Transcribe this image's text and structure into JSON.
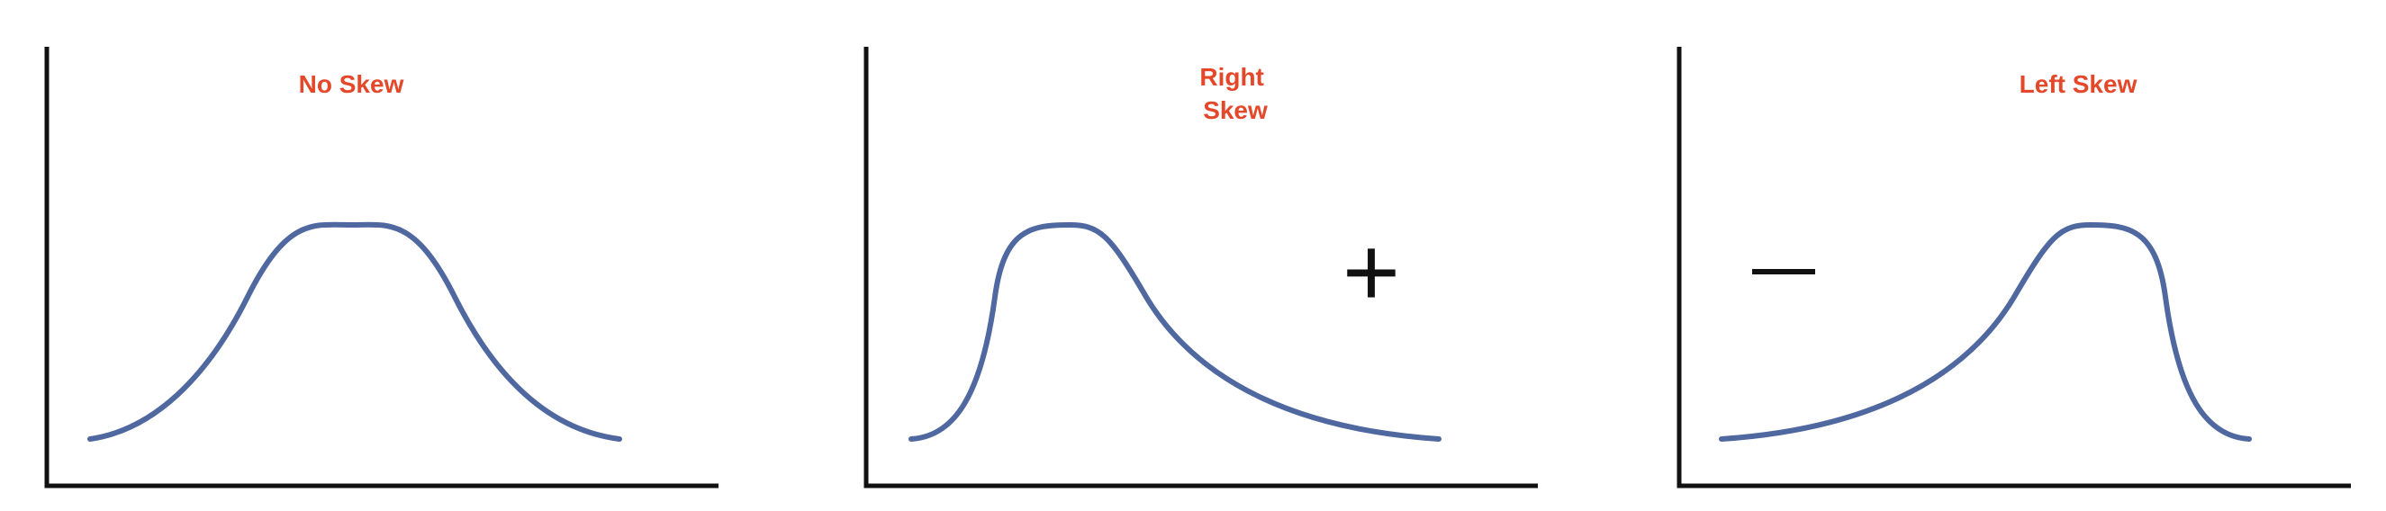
{
  "colors": {
    "curve": "#5068a0",
    "axis": "#111111",
    "title": "#e4482a",
    "sign": "#111111",
    "background": "#ffffff"
  },
  "panels": [
    {
      "id": "no-skew",
      "title_lines": [
        "No Skew"
      ],
      "sign": "",
      "curve": "symmetric"
    },
    {
      "id": "right-skew",
      "title_lines": [
        "Right",
        "Skew"
      ],
      "sign": "+",
      "curve": "right-skewed"
    },
    {
      "id": "left-skew",
      "title_lines": [
        "Left Skew"
      ],
      "sign": "",
      "sign_glyph": "minus-sign",
      "curve": "left-skewed"
    }
  ]
}
